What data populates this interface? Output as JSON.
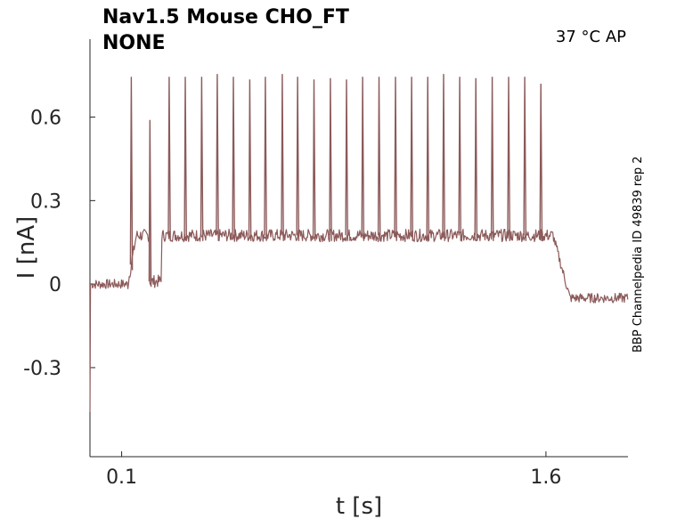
{
  "chart_data": {
    "type": "line",
    "title_line1": "Nav1.5  Mouse  CHO_FT",
    "title_line2": "NONE",
    "condition": "37 °C  AP",
    "side_note": "BBP Channelpedia ID 49839 rep 2",
    "xlabel": "t [s]",
    "ylabel": "I [nA]",
    "xlim": [
      -0.012,
      1.89
    ],
    "ylim": [
      -0.62,
      0.88
    ],
    "x_ticks": [
      {
        "value": 0.1,
        "label": "0.1"
      },
      {
        "value": 1.6,
        "label": "1.6"
      }
    ],
    "y_ticks": [
      {
        "value": 0.6,
        "label": "0.6"
      },
      {
        "value": 0.3,
        "label": "0.3"
      },
      {
        "value": 0,
        "label": "0"
      },
      {
        "value": -0.3,
        "label": "-0.3"
      }
    ],
    "grid": false,
    "legend": "none",
    "series": [
      {
        "color": "#8c5a5a",
        "baseline": 0.0,
        "step_onset": 0.122,
        "step_end": 1.625,
        "plateau": 0.175,
        "post_step": -0.05,
        "initial_transient": -0.46,
        "dip_window": [
          0.198,
          0.24
        ],
        "dip_level": 0.01,
        "spike_times": [
          0.134,
          0.2,
          0.268,
          0.325,
          0.383,
          0.438,
          0.495,
          0.553,
          0.608,
          0.668,
          0.722,
          0.78,
          0.838,
          0.895,
          0.952,
          1.01,
          1.068,
          1.125,
          1.182,
          1.238,
          1.295,
          1.352,
          1.41,
          1.468,
          1.525,
          1.582
        ],
        "spike_peaks": [
          0.745,
          0.59,
          0.745,
          0.745,
          0.745,
          0.755,
          0.745,
          0.735,
          0.745,
          0.755,
          0.745,
          0.735,
          0.74,
          0.735,
          0.745,
          0.745,
          0.745,
          0.745,
          0.745,
          0.755,
          0.745,
          0.74,
          0.745,
          0.745,
          0.745,
          0.72
        ]
      }
    ]
  }
}
